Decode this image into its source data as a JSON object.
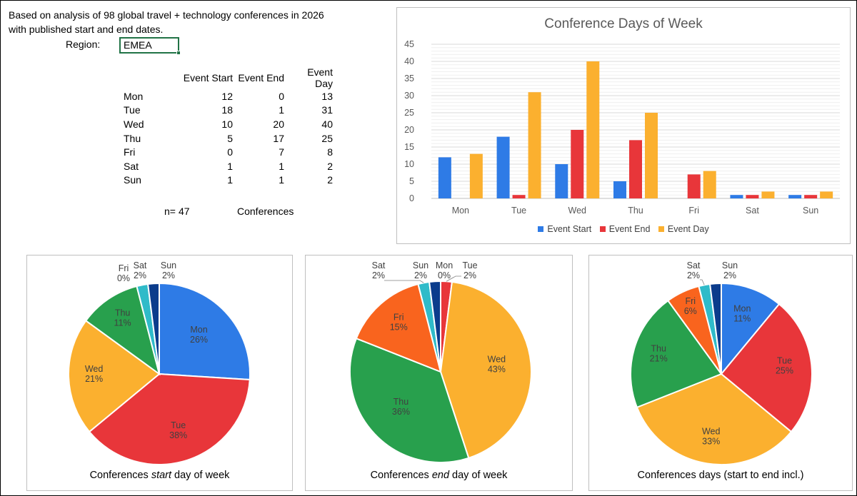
{
  "intro": {
    "line1": "Based on analysis of 98 global travel + technology conferences in 2026",
    "line2": "with published start and end dates."
  },
  "region": {
    "label": "Region:",
    "value": "EMEA"
  },
  "table": {
    "headers": [
      "Event Start",
      "Event End",
      "Event Day"
    ],
    "rows": [
      {
        "day": "Mon",
        "start": "12",
        "end": "0",
        "eday": "13"
      },
      {
        "day": "Tue",
        "start": "18",
        "end": "1",
        "eday": "31"
      },
      {
        "day": "Wed",
        "start": "10",
        "end": "20",
        "eday": "40"
      },
      {
        "day": "Thu",
        "start": "5",
        "end": "17",
        "eday": "25"
      },
      {
        "day": "Fri",
        "start": "0",
        "end": "7",
        "eday": "8"
      },
      {
        "day": "Sat",
        "start": "1",
        "end": "1",
        "eday": "2"
      },
      {
        "day": "Sun",
        "start": "1",
        "end": "1",
        "eday": "2"
      }
    ]
  },
  "summary": {
    "n_label": "n=",
    "n_value": "47",
    "unit": "Conferences"
  },
  "colors": {
    "event_start": "#2E7BE6",
    "event_end": "#E8363A",
    "event_day": "#FBB02F",
    "mon": "#2E7BE6",
    "tue": "#E8363A",
    "wed": "#FBB02F",
    "thu": "#28A04D",
    "fri": "#F9641E",
    "sat": "#2FBBC9",
    "sun": "#0B3C8C"
  },
  "chart_data": [
    {
      "type": "bar",
      "title": "Conference Days of Week",
      "categories": [
        "Mon",
        "Tue",
        "Wed",
        "Thu",
        "Fri",
        "Sat",
        "Sun"
      ],
      "series": [
        {
          "name": "Event Start",
          "values": [
            12,
            18,
            10,
            5,
            0,
            1,
            1
          ]
        },
        {
          "name": "Event End",
          "values": [
            0,
            1,
            20,
            17,
            7,
            1,
            1
          ]
        },
        {
          "name": "Event Day",
          "values": [
            13,
            31,
            40,
            25,
            8,
            2,
            2
          ]
        }
      ],
      "ylim": [
        0,
        45
      ],
      "yticks": [
        "0",
        "5",
        "10",
        "15",
        "20",
        "25",
        "30",
        "35",
        "40",
        "45"
      ],
      "grid": true,
      "legend": "bottom"
    },
    {
      "type": "pie",
      "title_pre": "Conferences ",
      "title_em": "start",
      "title_post": " day of week",
      "slices": [
        {
          "label": "Mon",
          "pct_label": "26%",
          "value": 26
        },
        {
          "label": "Tue",
          "pct_label": "38%",
          "value": 38
        },
        {
          "label": "Wed",
          "pct_label": "21%",
          "value": 21
        },
        {
          "label": "Thu",
          "pct_label": "11%",
          "value": 11
        },
        {
          "label": "Fri",
          "pct_label": "0%",
          "value": 0
        },
        {
          "label": "Sat",
          "pct_label": "2%",
          "value": 2
        },
        {
          "label": "Sun",
          "pct_label": "2%",
          "value": 2
        }
      ]
    },
    {
      "type": "pie",
      "title_pre": "Conferences ",
      "title_em": "end",
      "title_post": " day of week",
      "slices": [
        {
          "label": "Mon",
          "pct_label": "0%",
          "value": 0
        },
        {
          "label": "Tue",
          "pct_label": "2%",
          "value": 2
        },
        {
          "label": "Wed",
          "pct_label": "43%",
          "value": 43
        },
        {
          "label": "Thu",
          "pct_label": "36%",
          "value": 36
        },
        {
          "label": "Fri",
          "pct_label": "15%",
          "value": 15
        },
        {
          "label": "Sat",
          "pct_label": "2%",
          "value": 2
        },
        {
          "label": "Sun",
          "pct_label": "2%",
          "value": 2
        }
      ]
    },
    {
      "type": "pie",
      "title_pre": "Conferences days (start to end incl.)",
      "title_em": "",
      "title_post": "",
      "slices": [
        {
          "label": "Mon",
          "pct_label": "11%",
          "value": 11
        },
        {
          "label": "Tue",
          "pct_label": "25%",
          "value": 25
        },
        {
          "label": "Wed",
          "pct_label": "33%",
          "value": 33
        },
        {
          "label": "Thu",
          "pct_label": "21%",
          "value": 21
        },
        {
          "label": "Fri",
          "pct_label": "6%",
          "value": 6
        },
        {
          "label": "Sat",
          "pct_label": "2%",
          "value": 2
        },
        {
          "label": "Sun",
          "pct_label": "2%",
          "value": 2
        }
      ]
    }
  ]
}
